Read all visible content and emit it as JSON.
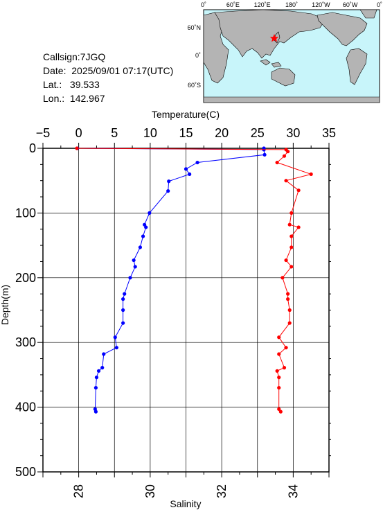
{
  "station": {
    "callsign": "Callsign:7JGQ",
    "date": "Date:  2025/09/01 07:17(UTC)",
    "lat": "Lat.:   39.533",
    "lon": "Lon.:  142.967"
  },
  "map": {
    "top_ticks": [
      "0˚",
      "60˚E",
      "120˚E",
      "180˚",
      "120˚W",
      "60˚W",
      "0˚"
    ],
    "lat_ticks": [
      "60˚N",
      "0˚",
      "60˚S"
    ],
    "colors": {
      "ocean": "#c8f5fa",
      "land": "#b4b4b4",
      "marker": "#ff0000"
    }
  },
  "chart_data": {
    "type": "line",
    "ylabel": "Depth(m)",
    "y_ticks": [
      "0",
      "100",
      "200",
      "300",
      "400",
      "500"
    ],
    "ylim": [
      0,
      500
    ],
    "grid": true,
    "x_top": {
      "label": "Temperature(C)",
      "ticks": [
        "−5",
        "0",
        "5",
        "10",
        "15",
        "20",
        "25",
        "30",
        "35"
      ],
      "range": [
        -5,
        35
      ]
    },
    "x_bottom": {
      "label": "Salinity",
      "ticks": [
        "28",
        "30",
        "32",
        "34"
      ],
      "range": [
        27,
        35
      ]
    },
    "series": [
      {
        "color": "#0000ff",
        "axis": "temperature",
        "depth": [
          0,
          2,
          10,
          22,
          32,
          40,
          51,
          66,
          100,
          118,
          122,
          136,
          153,
          173,
          183,
          200,
          225,
          233,
          250,
          270,
          292,
          308,
          318,
          339,
          344,
          354,
          370,
          403,
          407
        ],
        "values": [
          25.9,
          25.9,
          26.0,
          16.6,
          15.0,
          15.5,
          12.6,
          12.5,
          9.9,
          9.2,
          9.4,
          9.0,
          8.6,
          7.7,
          7.9,
          7.2,
          6.4,
          6.2,
          6.2,
          6.2,
          5.1,
          5.3,
          3.5,
          3.3,
          2.8,
          2.5,
          2.4,
          2.3,
          2.4
        ]
      },
      {
        "color": "#0000ff",
        "axis": "temperature",
        "depth": [
          0,
          2
        ],
        "values": [
          -0.2,
          25.9
        ]
      },
      {
        "color": "#ff0000",
        "axis": "salinity",
        "depth": [
          0,
          2,
          5,
          12,
          22,
          40,
          50,
          65,
          100,
          118,
          122,
          136,
          153,
          173,
          183,
          200,
          225,
          233,
          250,
          270,
          292,
          308,
          318,
          339,
          344,
          354,
          370,
          403,
          407
        ],
        "values": [
          27.95,
          33.8,
          33.85,
          33.75,
          33.55,
          34.5,
          33.8,
          34.15,
          33.95,
          33.9,
          34.15,
          33.95,
          33.95,
          33.8,
          33.95,
          33.7,
          33.85,
          33.85,
          33.9,
          33.9,
          33.6,
          33.8,
          33.6,
          33.75,
          33.55,
          33.6,
          33.6,
          33.6,
          33.65
        ]
      }
    ]
  }
}
